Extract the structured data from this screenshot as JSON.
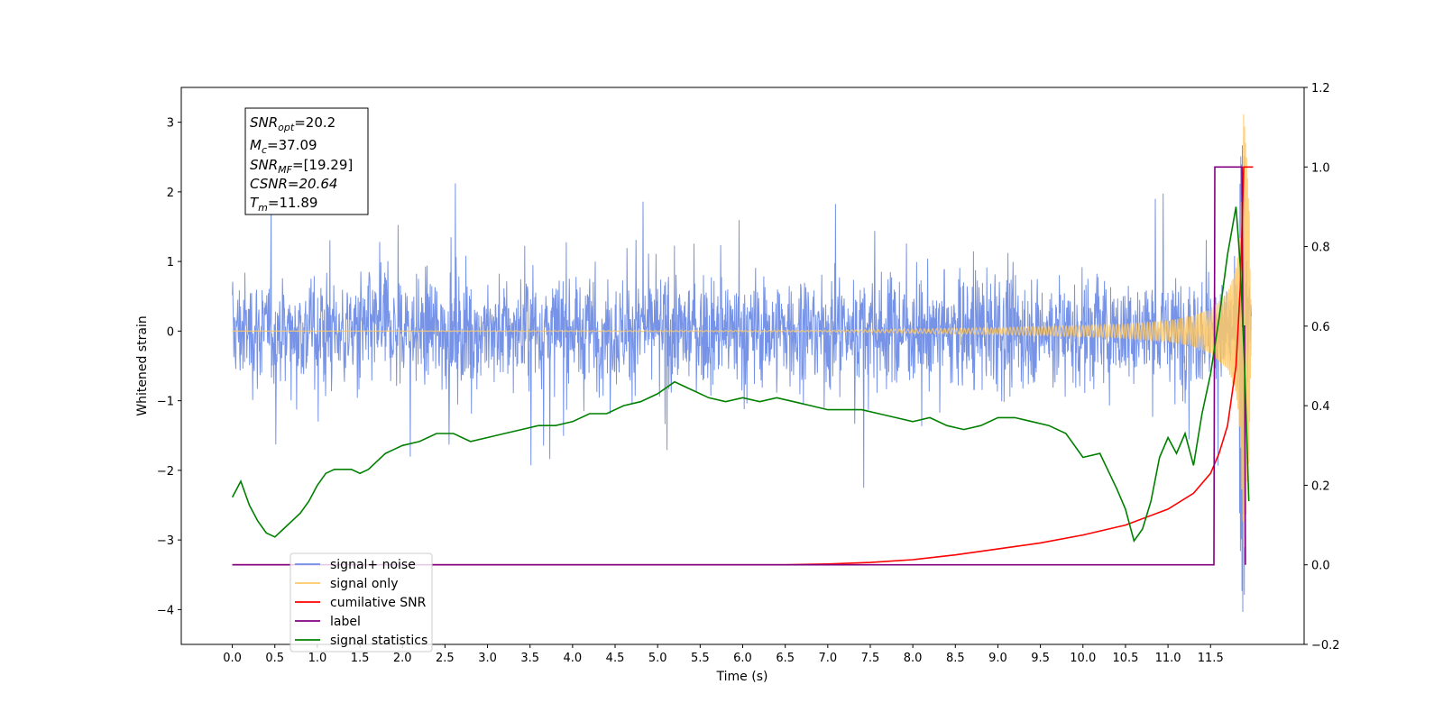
{
  "chart_data": {
    "type": "line",
    "xlabel": "Time (s)",
    "ylabel": "Whitened strain",
    "xlim": [
      -0.6,
      12.6
    ],
    "ylim": [
      -4.5,
      3.5
    ],
    "y2lim": [
      -0.2,
      1.2
    ],
    "x_ticks": [
      "0.0",
      "0.5",
      "1.0",
      "1.5",
      "2.0",
      "2.5",
      "3.0",
      "3.5",
      "4.0",
      "4.5",
      "5.0",
      "5.5",
      "6.0",
      "6.5",
      "7.0",
      "7.5",
      "8.0",
      "8.5",
      "9.0",
      "9.5",
      "10.0",
      "10.5",
      "11.0",
      "11.5"
    ],
    "y_ticks": [
      "3",
      "2",
      "1",
      "0",
      "−1",
      "−2",
      "−3",
      "−4"
    ],
    "y2_ticks": [
      "1.2",
      "1.0",
      "0.8",
      "0.6",
      "0.4",
      "0.2",
      "0.0",
      "−0.2"
    ],
    "grid": false,
    "legend_position": "lower left",
    "annotation": {
      "snr_opt": "=20.2",
      "mc": "=37.09",
      "snr_mf": "=[19.29]",
      "csnr": "CSNR=20.64",
      "tm": "=11.89"
    },
    "series": [
      {
        "name": "signal+ noise",
        "color": "#6f8de6",
        "axis": "left",
        "description_values": "noise band roughly between -1.3 and 1.3 with spikes to about ±2.4; burst near 11.85 s reaching about 2.7 and -4.1",
        "envelope": {
          "x": [
            0.0,
            11.98
          ],
          "upper": 1.3,
          "lower": -1.3,
          "peak_max": 2.7,
          "peak_min": -4.1
        }
      },
      {
        "name": "signal only",
        "color": "#ffc966",
        "axis": "left",
        "x": [
          0.0,
          7.0,
          8.0,
          9.0,
          10.0,
          10.5,
          11.0,
          11.3,
          11.5,
          11.7,
          11.8,
          11.85,
          11.89,
          11.95,
          11.98
        ],
        "amplitude": [
          0.0,
          0.01,
          0.03,
          0.05,
          0.08,
          0.1,
          0.15,
          0.22,
          0.32,
          0.55,
          0.9,
          1.5,
          3.2,
          2.0,
          0.1
        ]
      },
      {
        "name": "cumilative SNR",
        "color": "#ff0000",
        "axis": "right",
        "x": [
          0.0,
          6.5,
          7.0,
          7.5,
          8.0,
          8.5,
          9.0,
          9.5,
          10.0,
          10.5,
          11.0,
          11.3,
          11.5,
          11.6,
          11.7,
          11.8,
          11.85,
          11.89,
          12.0
        ],
        "y": [
          0.0,
          0.0,
          0.002,
          0.006,
          0.013,
          0.025,
          0.04,
          0.055,
          0.075,
          0.1,
          0.14,
          0.18,
          0.23,
          0.28,
          0.35,
          0.5,
          0.7,
          1.0,
          1.0
        ]
      },
      {
        "name": "label",
        "color": "#800080",
        "axis": "right",
        "x": [
          0.0,
          11.54,
          11.55,
          11.87,
          11.88,
          11.9,
          11.91
        ],
        "y": [
          0.0,
          0.0,
          1.0,
          1.0,
          0.6,
          0.6,
          0.0
        ]
      },
      {
        "name": "signal statistics",
        "color": "#008000",
        "axis": "right",
        "x": [
          0.0,
          0.1,
          0.2,
          0.3,
          0.4,
          0.5,
          0.6,
          0.7,
          0.8,
          0.9,
          1.0,
          1.1,
          1.2,
          1.3,
          1.4,
          1.5,
          1.6,
          1.7,
          1.8,
          1.9,
          2.0,
          2.2,
          2.4,
          2.6,
          2.8,
          3.0,
          3.2,
          3.4,
          3.6,
          3.8,
          4.0,
          4.2,
          4.4,
          4.6,
          4.8,
          5.0,
          5.2,
          5.4,
          5.6,
          5.8,
          6.0,
          6.2,
          6.4,
          6.6,
          6.8,
          7.0,
          7.2,
          7.4,
          7.6,
          7.8,
          8.0,
          8.2,
          8.4,
          8.6,
          8.8,
          9.0,
          9.2,
          9.4,
          9.6,
          9.8,
          10.0,
          10.2,
          10.4,
          10.5,
          10.6,
          10.7,
          10.8,
          10.9,
          11.0,
          11.1,
          11.2,
          11.3,
          11.4,
          11.5,
          11.6,
          11.7,
          11.8,
          11.85,
          11.9,
          11.95
        ],
        "y": [
          0.17,
          0.21,
          0.15,
          0.11,
          0.08,
          0.07,
          0.09,
          0.11,
          0.13,
          0.16,
          0.2,
          0.23,
          0.24,
          0.24,
          0.24,
          0.23,
          0.24,
          0.26,
          0.28,
          0.29,
          0.3,
          0.31,
          0.33,
          0.33,
          0.31,
          0.32,
          0.33,
          0.34,
          0.35,
          0.35,
          0.36,
          0.38,
          0.38,
          0.4,
          0.41,
          0.43,
          0.46,
          0.44,
          0.42,
          0.41,
          0.42,
          0.41,
          0.42,
          0.41,
          0.4,
          0.39,
          0.39,
          0.39,
          0.38,
          0.37,
          0.36,
          0.37,
          0.35,
          0.34,
          0.35,
          0.37,
          0.37,
          0.36,
          0.35,
          0.33,
          0.27,
          0.28,
          0.19,
          0.14,
          0.06,
          0.09,
          0.16,
          0.27,
          0.32,
          0.28,
          0.33,
          0.25,
          0.38,
          0.48,
          0.62,
          0.78,
          0.9,
          0.75,
          0.5,
          0.16
        ]
      }
    ]
  }
}
